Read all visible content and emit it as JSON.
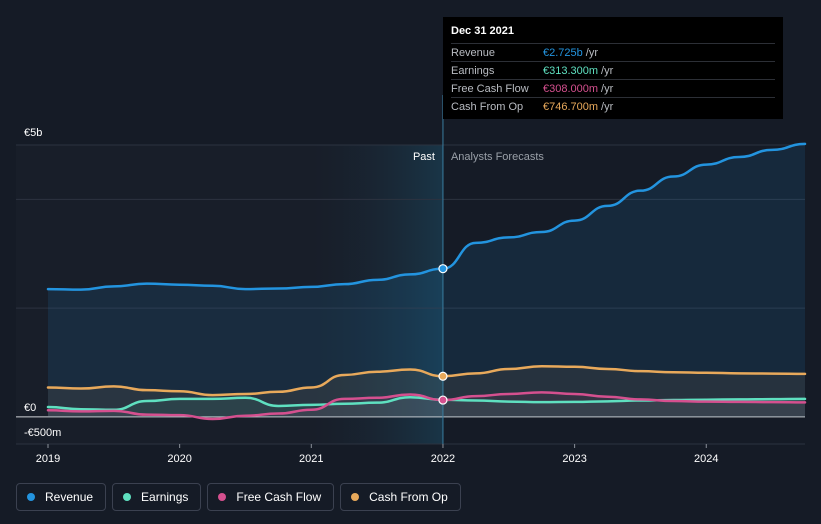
{
  "chart_data": {
    "type": "line",
    "currency": "€",
    "y_axis": {
      "max_label": "€5b",
      "zero_label": "€0",
      "min_label": "-€500m",
      "ylim": [
        -500,
        5000
      ]
    },
    "x_axis": {
      "ticks": [
        "2019",
        "2020",
        "2021",
        "2022",
        "2023",
        "2024"
      ],
      "xlim": [
        2019.0,
        2024.75
      ]
    },
    "past_label": "Past",
    "forecast_label": "Analysts Forecasts",
    "divider_x": 2022.0,
    "shaded_start_x": 2021.0,
    "series": [
      {
        "name": "Revenue",
        "key": "revenue",
        "color": "#2394df",
        "x": [
          2019.0,
          2019.25,
          2019.5,
          2019.75,
          2020.0,
          2020.25,
          2020.5,
          2020.75,
          2021.0,
          2021.25,
          2021.5,
          2021.75,
          2022.0,
          2022.25,
          2022.5,
          2022.75,
          2023.0,
          2023.25,
          2023.5,
          2023.75,
          2024.0,
          2024.25,
          2024.5,
          2024.75
        ],
        "values": [
          2350,
          2340,
          2400,
          2450,
          2430,
          2410,
          2350,
          2360,
          2390,
          2440,
          2520,
          2620,
          2725,
          3200,
          3300,
          3400,
          3610,
          3880,
          4160,
          4420,
          4640,
          4780,
          4910,
          5020
        ]
      },
      {
        "name": "Earnings",
        "key": "earnings",
        "color": "#5fe0c0",
        "x": [
          2019.0,
          2019.25,
          2019.5,
          2019.75,
          2020.0,
          2020.25,
          2020.5,
          2020.75,
          2021.0,
          2021.25,
          2021.5,
          2021.75,
          2022.0,
          2022.25,
          2022.5,
          2022.75,
          2023.0,
          2023.25,
          2023.5,
          2023.75,
          2024.0,
          2024.25,
          2024.5,
          2024.75
        ],
        "values": [
          180,
          140,
          130,
          290,
          330,
          330,
          350,
          200,
          220,
          240,
          260,
          360,
          313,
          300,
          280,
          270,
          275,
          285,
          300,
          310,
          315,
          320,
          325,
          330
        ]
      },
      {
        "name": "Free Cash Flow",
        "key": "fcf",
        "color": "#d5508f",
        "x": [
          2019.0,
          2019.25,
          2019.5,
          2019.75,
          2020.0,
          2020.25,
          2020.5,
          2020.75,
          2021.0,
          2021.25,
          2021.5,
          2021.75,
          2022.0,
          2022.25,
          2022.5,
          2022.75,
          2023.0,
          2023.25,
          2023.5,
          2023.75,
          2024.0,
          2024.25,
          2024.5,
          2024.75
        ],
        "values": [
          120,
          100,
          110,
          40,
          30,
          -40,
          20,
          60,
          130,
          330,
          350,
          410,
          308,
          380,
          420,
          450,
          420,
          370,
          320,
          290,
          280,
          275,
          270,
          265
        ]
      },
      {
        "name": "Cash From Op",
        "key": "cfo",
        "color": "#e8a95b",
        "x": [
          2019.0,
          2019.25,
          2019.5,
          2019.75,
          2020.0,
          2020.25,
          2020.5,
          2020.75,
          2021.0,
          2021.25,
          2021.5,
          2021.75,
          2022.0,
          2022.25,
          2022.5,
          2022.75,
          2023.0,
          2023.25,
          2023.5,
          2023.75,
          2024.0,
          2024.25,
          2024.5,
          2024.75
        ],
        "values": [
          540,
          520,
          560,
          490,
          470,
          400,
          420,
          460,
          540,
          770,
          830,
          870,
          746.7,
          800,
          880,
          930,
          920,
          880,
          840,
          820,
          810,
          800,
          795,
          790
        ]
      }
    ]
  },
  "tooltip": {
    "date": "Dec 31 2021",
    "rows": [
      {
        "name": "Revenue",
        "value": "€2.725b",
        "unit": "/yr",
        "color": "#2394df"
      },
      {
        "name": "Earnings",
        "value": "€313.300m",
        "unit": "/yr",
        "color": "#5fe0c0"
      },
      {
        "name": "Free Cash Flow",
        "value": "€308.000m",
        "unit": "/yr",
        "color": "#d5508f"
      },
      {
        "name": "Cash From Op",
        "value": "€746.700m",
        "unit": "/yr",
        "color": "#e8a95b"
      }
    ]
  },
  "legend": [
    {
      "label": "Revenue",
      "color": "#2394df"
    },
    {
      "label": "Earnings",
      "color": "#5fe0c0"
    },
    {
      "label": "Free Cash Flow",
      "color": "#d5508f"
    },
    {
      "label": "Cash From Op",
      "color": "#e8a95b"
    }
  ]
}
